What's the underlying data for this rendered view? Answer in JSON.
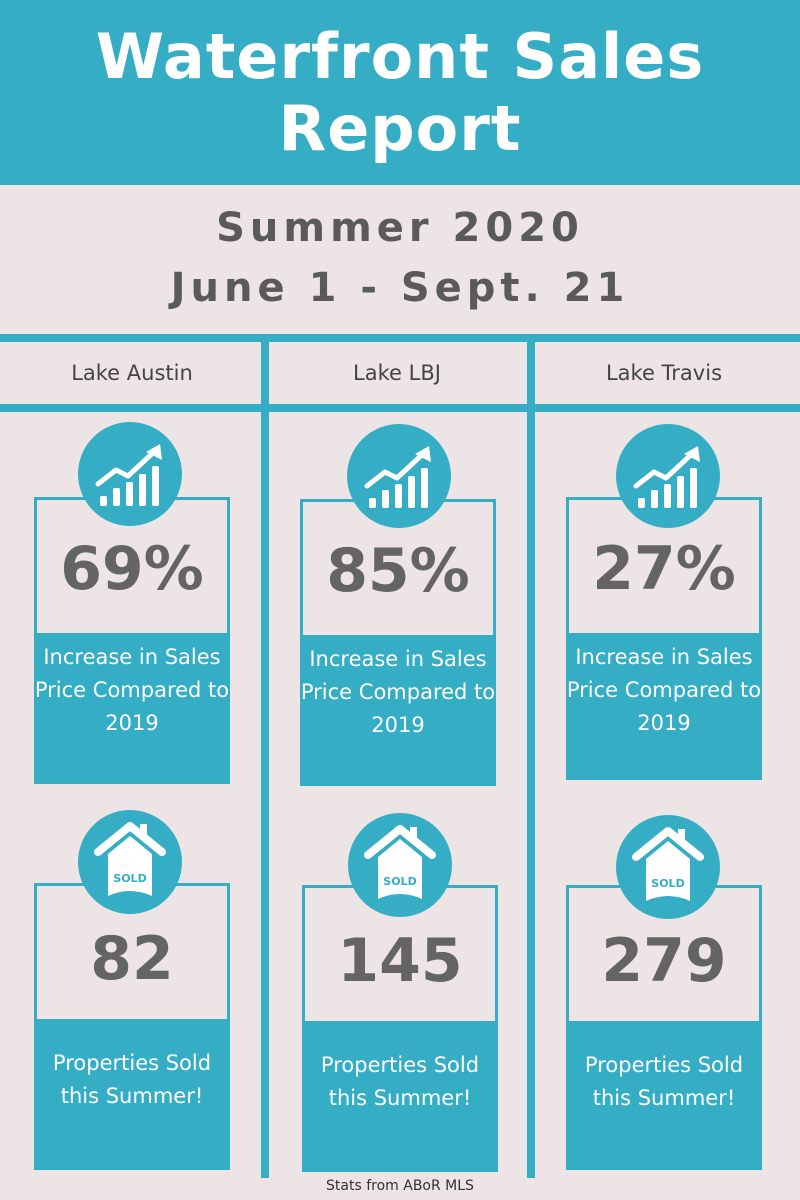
{
  "header": {
    "title_line1": "Waterfront Sales",
    "title_line2": "Report"
  },
  "period": {
    "season": "Summer 2020",
    "dates": "June 1 - Sept. 21"
  },
  "colors": {
    "accent": "#35adc5",
    "background": "#ece4e5",
    "text": "#646464"
  },
  "lakes": [
    {
      "name": "Lake Austin",
      "price_increase": "69%",
      "price_caption": "Increase in Sales Price Compared to 2019",
      "sold": "82",
      "sold_caption": "Properties Sold this Summer!",
      "sold_badge": "SOLD"
    },
    {
      "name": "Lake LBJ",
      "price_increase": "85%",
      "price_caption": "Increase in Sales Price Compared to 2019",
      "sold": "145",
      "sold_caption": "Properties Sold this Summer!",
      "sold_badge": "SOLD"
    },
    {
      "name": "Lake Travis",
      "price_increase": "27%",
      "price_caption": "Increase in Sales Price Compared to 2019",
      "sold": "279",
      "sold_caption": "Properties Sold this Summer!",
      "sold_badge": "SOLD"
    }
  ],
  "icons": {
    "growth": "chart-growth-icon",
    "house": "house-sold-icon"
  },
  "footer": {
    "source": "Stats from ABoR MLS"
  }
}
